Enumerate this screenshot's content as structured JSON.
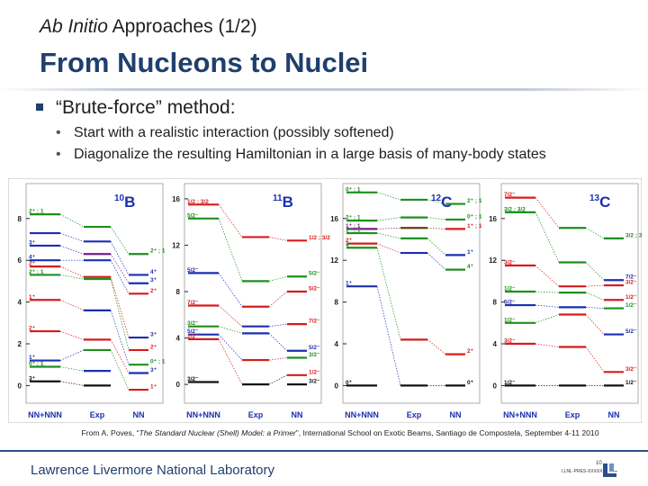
{
  "slide": {
    "subtitle_italic": "Ab Initio",
    "subtitle_rest": " Approaches (1/2)",
    "title": "From Nucleons to Nuclei",
    "bullet": "“Brute-force” method:",
    "subbullets": [
      "Start with a realistic interaction (possibly softened)",
      "Diagonalize the resulting Hamiltonian in a large basis of many-body states"
    ],
    "caption_pre": "From A. Poves, “",
    "caption_italic": "The Standard Nuclear (Shell) Model: a Primer",
    "caption_post": "”, International School on Exotic Beams, Santiago de Compostela, September 4-11 2010",
    "footer": "Lawrence Livermore National Laboratory",
    "page_number": "10",
    "doc_id": "LLNL-PRES-XXXXX"
  },
  "figure": {
    "bg": "#ffffff",
    "colors": {
      "black": "#111111",
      "red": "#d81b1b",
      "green": "#1e8f1e",
      "blue": "#1a2fb0",
      "brown": "#6b3a12",
      "purple": "#7a1a8a"
    },
    "panels": [
      {
        "nucleus_mass": "10",
        "nucleus_symbol": "B",
        "labels": [
          "NN+NNN",
          "Exp",
          "NN"
        ],
        "axis": {
          "ticks": [
            "0",
            "2",
            "4",
            "6",
            "8"
          ],
          "min": -0.5,
          "max": 9.5
        },
        "columns": [
          {
            "levels": [
              {
                "e": 8.2,
                "c": "green",
                "l": "2⁺ ; 1"
              },
              {
                "e": 7.3,
                "c": "blue",
                "l": ""
              },
              {
                "e": 6.7,
                "c": "blue",
                "l": "3⁺"
              },
              {
                "e": 6.0,
                "c": "blue",
                "l": "4⁺"
              },
              {
                "e": 5.7,
                "c": "red",
                "l": "2⁺"
              },
              {
                "e": 5.3,
                "c": "green",
                "l": "2⁺ ; 1"
              },
              {
                "e": 4.1,
                "c": "red",
                "l": "1⁺"
              },
              {
                "e": 2.6,
                "c": "red",
                "l": "2⁺"
              },
              {
                "e": 1.2,
                "c": "blue",
                "l": "1⁺"
              },
              {
                "e": 0.9,
                "c": "green",
                "l": "0⁺ ; 1"
              },
              {
                "e": 0.2,
                "c": "black",
                "l": "3⁺"
              }
            ]
          },
          {
            "levels": [
              {
                "e": 7.6,
                "c": "green",
                "l": ""
              },
              {
                "e": 6.9,
                "c": "blue",
                "l": ""
              },
              {
                "e": 6.3,
                "c": "purple",
                "l": ""
              },
              {
                "e": 6.0,
                "c": "blue",
                "l": ""
              },
              {
                "e": 5.2,
                "c": "red",
                "l": ""
              },
              {
                "e": 5.1,
                "c": "green",
                "l": ""
              },
              {
                "e": 3.6,
                "c": "blue",
                "l": ""
              },
              {
                "e": 2.2,
                "c": "red",
                "l": ""
              },
              {
                "e": 1.7,
                "c": "green",
                "l": ""
              },
              {
                "e": 0.7,
                "c": "blue",
                "l": ""
              },
              {
                "e": 0.0,
                "c": "black",
                "l": ""
              }
            ]
          },
          {
            "levels": [
              {
                "e": 6.3,
                "c": "green",
                "l": "2⁺ ; 1"
              },
              {
                "e": 5.3,
                "c": "blue",
                "l": "4⁺"
              },
              {
                "e": 4.9,
                "c": "blue",
                "l": "3⁺"
              },
              {
                "e": 4.4,
                "c": "red",
                "l": "2⁺"
              },
              {
                "e": 2.3,
                "c": "blue",
                "l": "3⁺"
              },
              {
                "e": 1.7,
                "c": "red",
                "l": "2⁺"
              },
              {
                "e": 1.0,
                "c": "green",
                "l": "0⁺ ; 1"
              },
              {
                "e": 0.6,
                "c": "blue",
                "l": "3⁺"
              },
              {
                "e": -0.2,
                "c": "red",
                "l": "1⁺"
              }
            ]
          }
        ]
      },
      {
        "nucleus_mass": "11",
        "nucleus_symbol": "B",
        "labels": [
          "NN+NNN",
          "Exp",
          "NN"
        ],
        "axis": {
          "ticks": [
            "0",
            "4",
            "8",
            "12",
            "16"
          ],
          "min": -1,
          "max": 17
        },
        "columns": [
          {
            "levels": [
              {
                "e": 15.5,
                "c": "red",
                "l": "1/2 ; 3/2"
              },
              {
                "e": 14.3,
                "c": "green",
                "l": "5/2⁻"
              },
              {
                "e": 9.6,
                "c": "blue",
                "l": "5/2⁻"
              },
              {
                "e": 6.8,
                "c": "red",
                "l": "7/2⁻"
              },
              {
                "e": 5.0,
                "c": "green",
                "l": "3/2⁻"
              },
              {
                "e": 4.3,
                "c": "blue",
                "l": "5/2⁻"
              },
              {
                "e": 3.9,
                "c": "red",
                "l": "1/2⁻"
              },
              {
                "e": 0.2,
                "c": "black",
                "l": "3/2⁻"
              }
            ]
          },
          {
            "levels": [
              {
                "e": 12.7,
                "c": "red",
                "l": ""
              },
              {
                "e": 8.9,
                "c": "green",
                "l": ""
              },
              {
                "e": 6.7,
                "c": "red",
                "l": ""
              },
              {
                "e": 5.0,
                "c": "blue",
                "l": ""
              },
              {
                "e": 4.4,
                "c": "blue",
                "l": ""
              },
              {
                "e": 2.1,
                "c": "red",
                "l": ""
              },
              {
                "e": 0.0,
                "c": "black",
                "l": ""
              }
            ]
          },
          {
            "levels": [
              {
                "e": 12.4,
                "c": "red",
                "l": "1/2 ; 3/2"
              },
              {
                "e": 9.3,
                "c": "green",
                "l": "5/2⁻"
              },
              {
                "e": 8.0,
                "c": "red",
                "l": "5/2⁻"
              },
              {
                "e": 5.2,
                "c": "red",
                "l": "7/2⁻"
              },
              {
                "e": 2.9,
                "c": "blue",
                "l": "5/2⁻"
              },
              {
                "e": 2.3,
                "c": "green",
                "l": "3/2⁻"
              },
              {
                "e": 0.8,
                "c": "red",
                "l": "1/2⁻"
              },
              {
                "e": 0.0,
                "c": "black",
                "l": "3/2⁻"
              }
            ]
          }
        ]
      },
      {
        "nucleus_mass": "12",
        "nucleus_symbol": "C",
        "labels": [
          "NN+NNN",
          "Exp",
          "NN"
        ],
        "axis": {
          "ticks": [
            "0",
            "4",
            "8",
            "12",
            "16"
          ],
          "min": -1,
          "max": 19
        },
        "columns": [
          {
            "levels": [
              {
                "e": 18.5,
                "c": "green",
                "l": "0⁺ ; 1"
              },
              {
                "e": 15.8,
                "c": "green",
                "l": "2⁺ ; 1"
              },
              {
                "e": 15.0,
                "c": "purple",
                "l": "1⁺ ; 1"
              },
              {
                "e": 14.6,
                "c": "green",
                "l": "1⁺ ; 1"
              },
              {
                "e": 13.6,
                "c": "red",
                "l": "2⁺"
              },
              {
                "e": 13.2,
                "c": "green",
                "l": "4⁺"
              },
              {
                "e": 9.5,
                "c": "blue",
                "l": "1⁺"
              },
              {
                "e": 0.0,
                "c": "black",
                "l": "0⁺"
              }
            ]
          },
          {
            "levels": [
              {
                "e": 17.8,
                "c": "green",
                "l": ""
              },
              {
                "e": 16.1,
                "c": "green",
                "l": ""
              },
              {
                "e": 15.1,
                "c": "brown",
                "l": ""
              },
              {
                "e": 14.1,
                "c": "green",
                "l": ""
              },
              {
                "e": 12.7,
                "c": "blue",
                "l": ""
              },
              {
                "e": 4.4,
                "c": "red",
                "l": ""
              },
              {
                "e": 0.0,
                "c": "black",
                "l": ""
              }
            ]
          },
          {
            "levels": [
              {
                "e": 17.4,
                "c": "green",
                "l": "2⁺ ; 1"
              },
              {
                "e": 15.9,
                "c": "green",
                "l": "0⁺ ; 1"
              },
              {
                "e": 15.0,
                "c": "red",
                "l": "1⁺ ; 1"
              },
              {
                "e": 12.5,
                "c": "blue",
                "l": "1⁺"
              },
              {
                "e": 11.1,
                "c": "green",
                "l": "4⁺"
              },
              {
                "e": 3.0,
                "c": "red",
                "l": "2⁺"
              },
              {
                "e": 0.0,
                "c": "black",
                "l": "0⁺"
              }
            ]
          }
        ]
      },
      {
        "nucleus_mass": "13",
        "nucleus_symbol": "C",
        "labels": [
          "NN+NNN",
          "Exp",
          "NN"
        ],
        "axis": {
          "ticks": [
            "0",
            "4",
            "8",
            "12",
            "16"
          ],
          "min": -1,
          "max": 19
        },
        "columns": [
          {
            "levels": [
              {
                "e": 18.0,
                "c": "red",
                "l": "7/2⁻"
              },
              {
                "e": 16.6,
                "c": "green",
                "l": "3/2 ; 3/2"
              },
              {
                "e": 11.5,
                "c": "red",
                "l": "3/2⁻"
              },
              {
                "e": 9.0,
                "c": "green",
                "l": "1/2⁻"
              },
              {
                "e": 7.7,
                "c": "blue",
                "l": "5/2⁻"
              },
              {
                "e": 6.0,
                "c": "green",
                "l": "1/2⁻"
              },
              {
                "e": 4.0,
                "c": "red",
                "l": "3/2⁻"
              },
              {
                "e": 0.0,
                "c": "black",
                "l": "1/2⁻"
              }
            ]
          },
          {
            "levels": [
              {
                "e": 15.1,
                "c": "green",
                "l": ""
              },
              {
                "e": 11.8,
                "c": "green",
                "l": ""
              },
              {
                "e": 9.5,
                "c": "red",
                "l": ""
              },
              {
                "e": 8.9,
                "c": "green",
                "l": ""
              },
              {
                "e": 7.5,
                "c": "blue",
                "l": ""
              },
              {
                "e": 6.8,
                "c": "red",
                "l": ""
              },
              {
                "e": 3.7,
                "c": "red",
                "l": ""
              },
              {
                "e": 0.0,
                "c": "black",
                "l": ""
              }
            ]
          },
          {
            "levels": [
              {
                "e": 14.1,
                "c": "green",
                "l": "3/2 ; 3/2"
              },
              {
                "e": 10.1,
                "c": "blue",
                "l": "7/2⁻"
              },
              {
                "e": 9.6,
                "c": "red",
                "l": "3/2⁻"
              },
              {
                "e": 8.2,
                "c": "red",
                "l": "1/2⁻"
              },
              {
                "e": 7.4,
                "c": "green",
                "l": "1/2⁻"
              },
              {
                "e": 4.9,
                "c": "blue",
                "l": "5/2⁻"
              },
              {
                "e": 1.3,
                "c": "red",
                "l": "3/2⁻"
              },
              {
                "e": 0.0,
                "c": "black",
                "l": "1/2⁻"
              }
            ]
          }
        ]
      }
    ]
  }
}
